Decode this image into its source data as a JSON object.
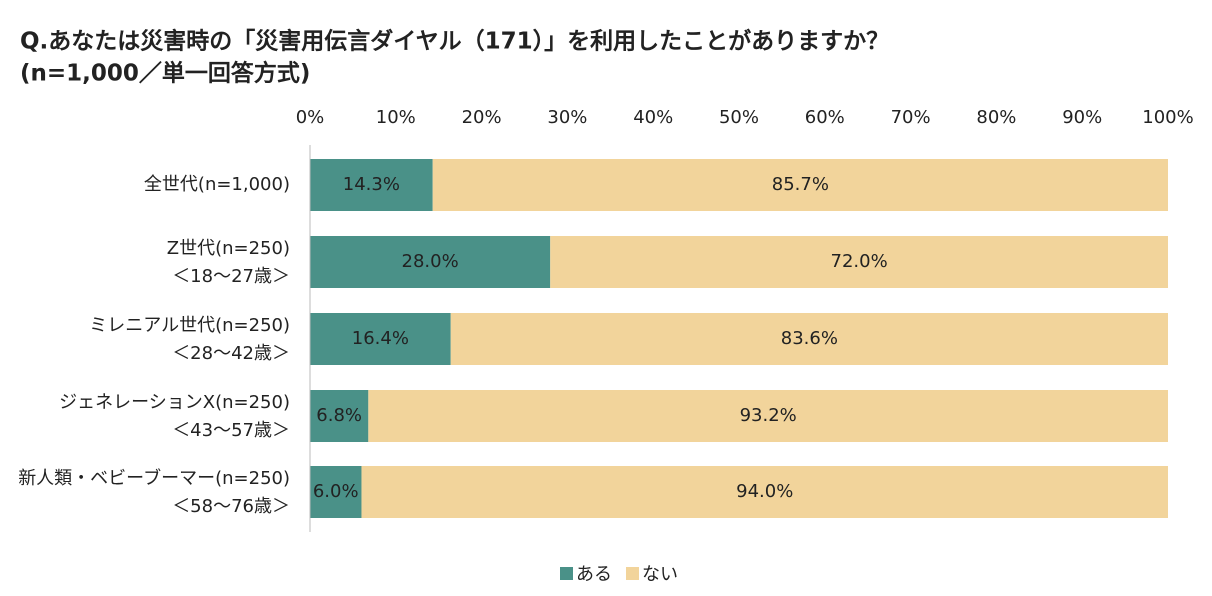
{
  "chart_data": {
    "type": "stacked-bar-horizontal",
    "title": "Q.あなたは災害時の「災害用伝言ダイヤル（171）」を利用したことがありますか？",
    "subtitle": "(n=1,000／単一回答方式)",
    "categories": [
      [
        "全世代(n=1,000)"
      ],
      [
        "Z世代(n=250)",
        "＜18～27歳＞"
      ],
      [
        "ミレニアル世代(n=250)",
        "＜28～42歳＞"
      ],
      [
        "ジェネレーションX(n=250)",
        "＜43～57歳＞"
      ],
      [
        "新人類・ベビーブーマー(n=250)",
        "＜58～76歳＞"
      ]
    ],
    "series": [
      {
        "name": "ある",
        "color": "#4a9188",
        "values": [
          14.3,
          28.0,
          16.4,
          6.8,
          6.0
        ],
        "value_labels": [
          "14.3%",
          "28.0%",
          "16.4%",
          "6.8%",
          "6.0%"
        ]
      },
      {
        "name": "ない",
        "color": "#f2d49b",
        "values": [
          85.7,
          72.0,
          83.6,
          93.2,
          94.0
        ],
        "value_labels": [
          "85.7%",
          "72.0%",
          "83.6%",
          "93.2%",
          "94.0%"
        ]
      }
    ],
    "xlim": [
      0,
      100
    ],
    "xticks": [
      {
        "value": 0,
        "label": "0%"
      },
      {
        "value": 10,
        "label": "10%"
      },
      {
        "value": 20,
        "label": "20%"
      },
      {
        "value": 30,
        "label": "30%"
      },
      {
        "value": 40,
        "label": "40%"
      },
      {
        "value": 50,
        "label": "50%"
      },
      {
        "value": 60,
        "label": "60%"
      },
      {
        "value": 70,
        "label": "70%"
      },
      {
        "value": 80,
        "label": "80%"
      },
      {
        "value": 90,
        "label": "90%"
      },
      {
        "value": 100,
        "label": "100%"
      }
    ],
    "legend": "bottom"
  }
}
